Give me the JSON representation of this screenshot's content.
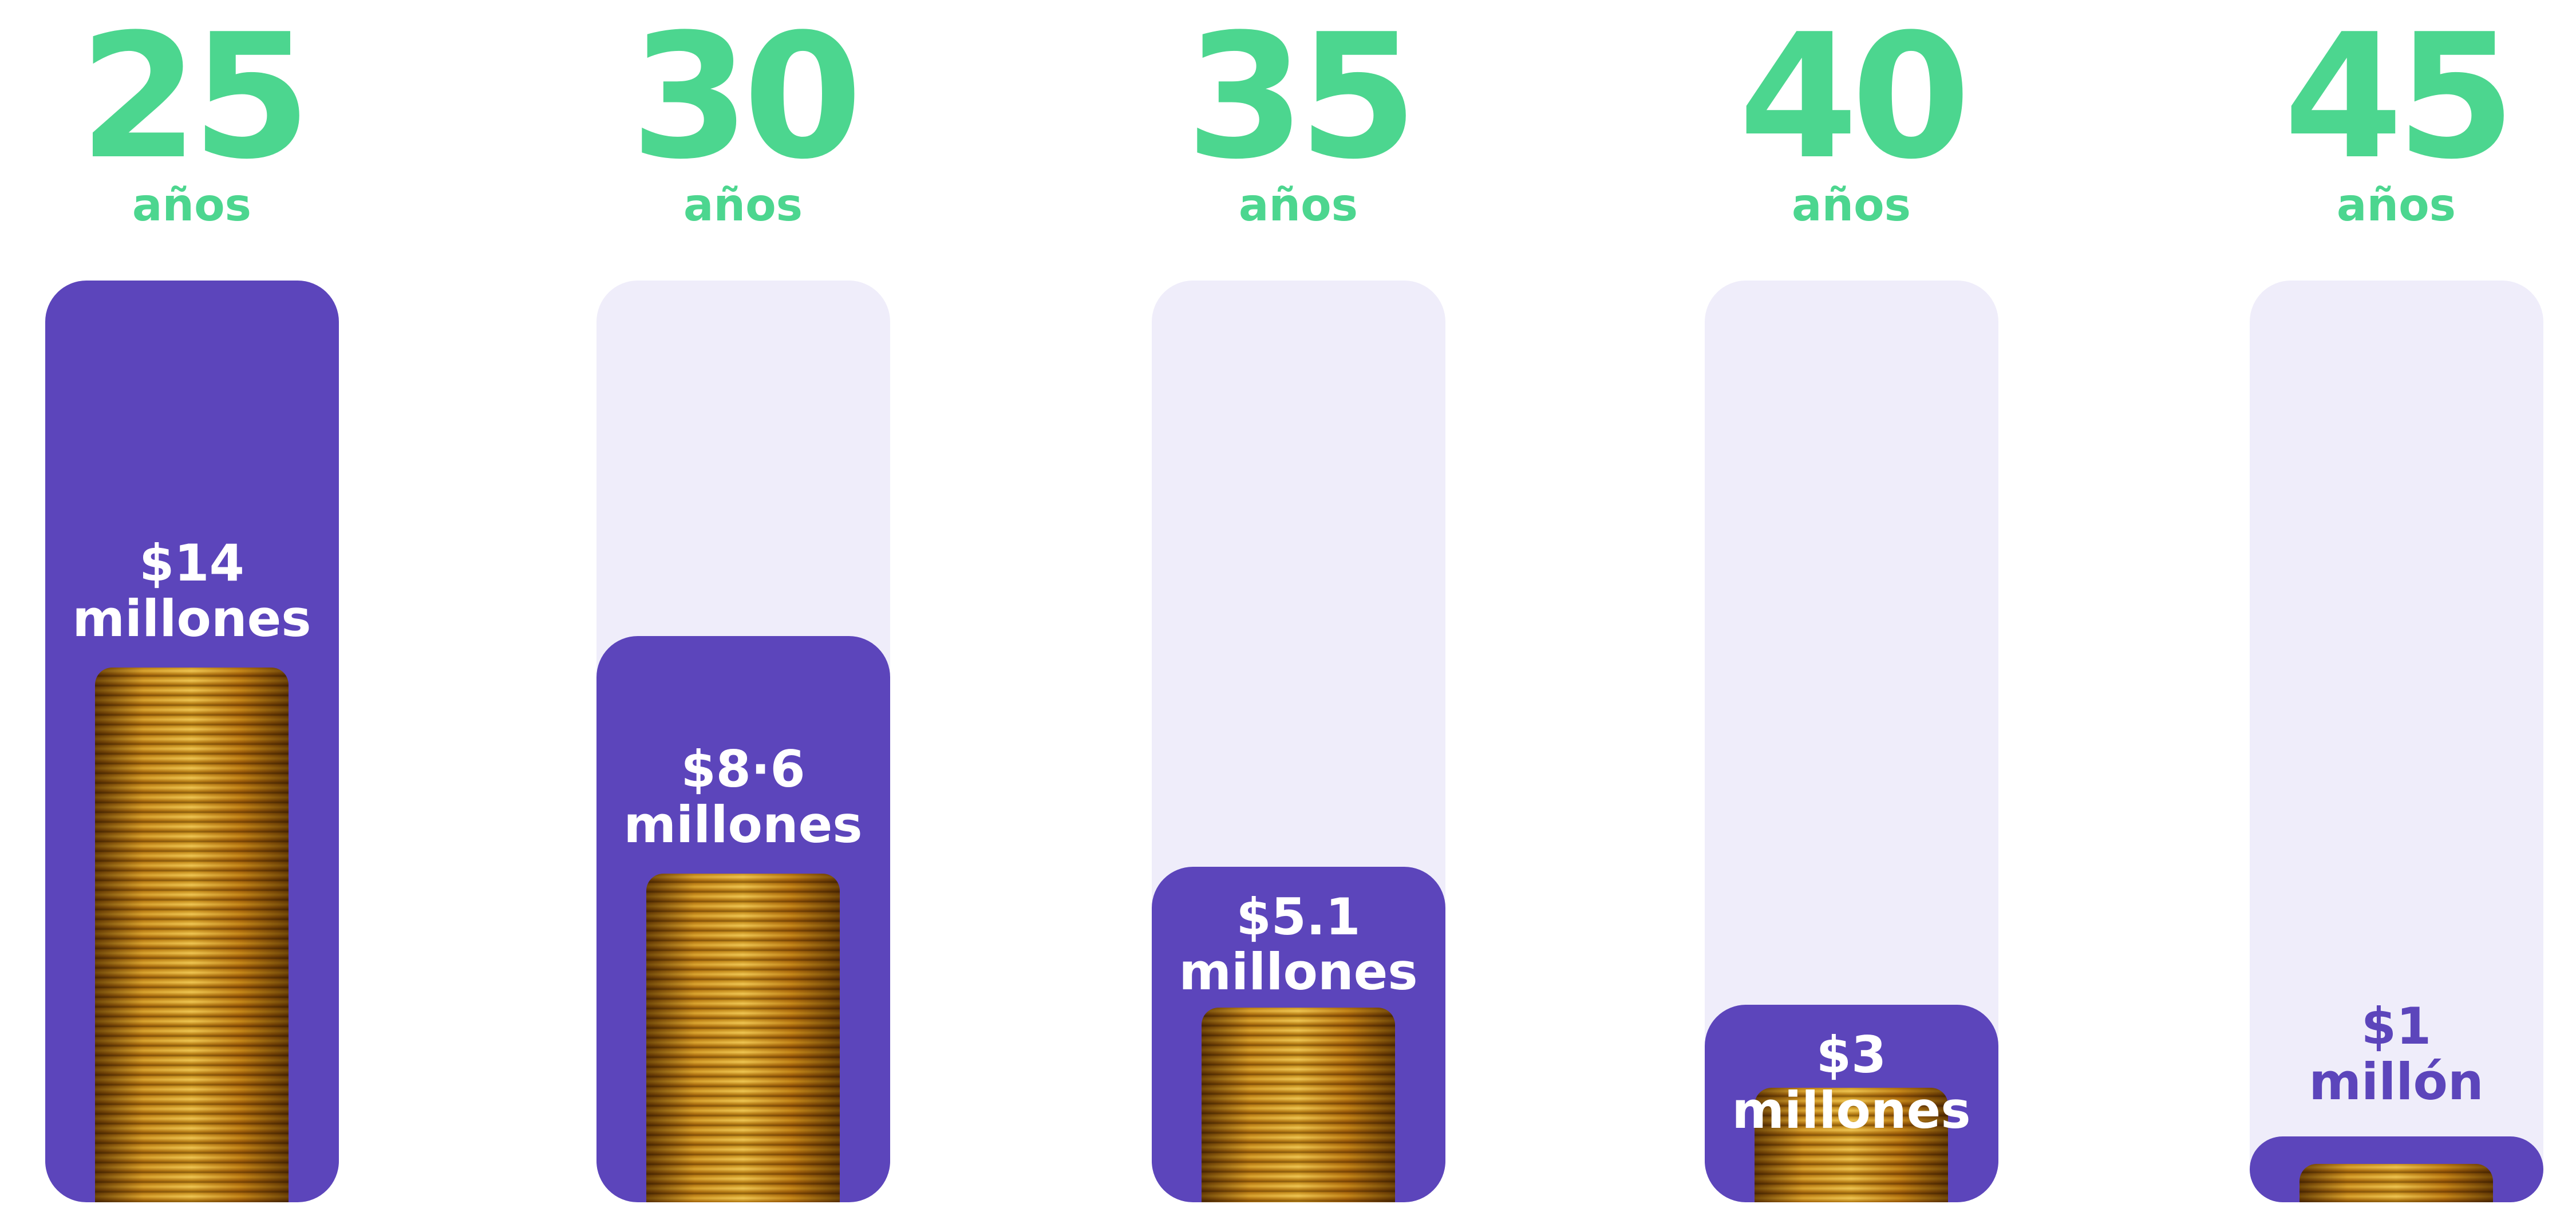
{
  "chart_data": {
    "type": "bar",
    "categories": [
      "25",
      "30",
      "35",
      "40",
      "45"
    ],
    "category_unit": "años",
    "values": [
      14,
      8.6,
      5.1,
      3,
      1
    ],
    "value_labels": [
      "$14\nmillones",
      "$8·6\nmillones",
      "$5.1\nmillones",
      "$3\nmillones",
      "$1\nmillón"
    ],
    "ylim": [
      0,
      14
    ],
    "color": "#5c45bb",
    "track_color": "#efedfa",
    "category_color": "#4cd68f"
  }
}
